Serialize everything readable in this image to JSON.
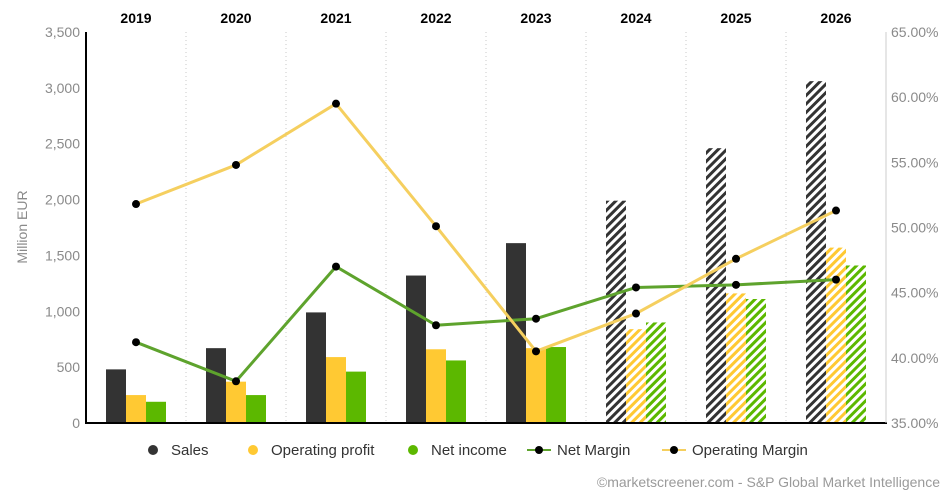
{
  "chart_data": {
    "type": "bar",
    "categories": [
      "2019",
      "2020",
      "2021",
      "2022",
      "2023",
      "2024",
      "2025",
      "2026"
    ],
    "ylabel": "Million EUR",
    "ylim": [
      0,
      3500
    ],
    "y_ticks": [
      "0",
      "500",
      "1,000",
      "1,500",
      "2,000",
      "2,500",
      "3,000",
      "3,500"
    ],
    "y2lim": [
      35,
      65
    ],
    "y2_ticks": [
      "35.00%",
      "40.00%",
      "45.00%",
      "50.00%",
      "55.00%",
      "60.00%",
      "65.00%"
    ],
    "forecast_from": "2024",
    "grid": "vertical-dotted",
    "legend_position": "bottom",
    "series": [
      {
        "name": "Sales",
        "kind": "bar",
        "color": "#333333",
        "values": [
          480,
          670,
          990,
          1320,
          1610,
          1990,
          2460,
          3060
        ]
      },
      {
        "name": "Operating profit",
        "kind": "bar",
        "color": "#ffc933",
        "values": [
          250,
          370,
          590,
          660,
          670,
          840,
          1160,
          1570
        ]
      },
      {
        "name": "Net income",
        "kind": "bar",
        "color": "#5cb800",
        "values": [
          190,
          250,
          460,
          560,
          680,
          900,
          1110,
          1410
        ]
      },
      {
        "name": "Net Margin",
        "kind": "line",
        "axis": "right",
        "color": "#5ea32d",
        "values": [
          41.2,
          38.2,
          47.0,
          42.5,
          43.0,
          45.4,
          45.6,
          46.0
        ]
      },
      {
        "name": "Operating Margin",
        "kind": "line",
        "axis": "right",
        "color": "#f5cf5f",
        "values": [
          51.8,
          54.8,
          59.5,
          50.1,
          40.5,
          43.4,
          47.6,
          51.3
        ]
      }
    ]
  },
  "footer": {
    "copyright": "©marketscreener.com - S&P Global Market Intelligence"
  }
}
